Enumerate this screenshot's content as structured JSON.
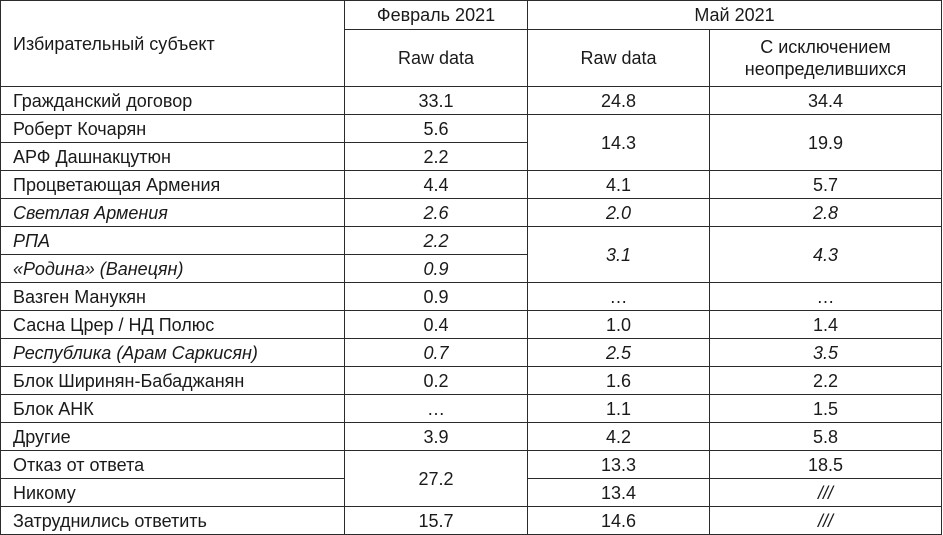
{
  "header": {
    "subject_label": "Избирательный субъект",
    "feb": "Февраль 2021",
    "may": "Май 2021",
    "raw1": "Raw data",
    "raw2": "Raw data",
    "excl_line1": "С исключением",
    "excl_line2": "неопределившихся"
  },
  "rows": [
    {
      "name": "Гражданский договор",
      "feb": "33.1",
      "may": "24.8",
      "excl": "34.4"
    },
    {
      "name": "Роберт Кочарян",
      "feb": "5.6",
      "may": "14.3",
      "excl": "19.9"
    },
    {
      "name": "АРФ Дашнакцутюн",
      "feb": "2.2"
    },
    {
      "name": "Процветающая Армения",
      "feb": "4.4",
      "may": "4.1",
      "excl": "5.7"
    },
    {
      "name": "Светлая Армения",
      "feb": "2.6",
      "may": "2.0",
      "excl": "2.8"
    },
    {
      "name": "РПА",
      "feb": "2.2",
      "may": "3.1",
      "excl": "4.3"
    },
    {
      "name": "«Родина» (Ванецян)",
      "feb": "0.9"
    },
    {
      "name": "Вазген Манукян",
      "feb": "0.9",
      "may": "…",
      "excl": "…"
    },
    {
      "name": "Сасна Црер / НД Полюс",
      "feb": "0.4",
      "may": "1.0",
      "excl": "1.4"
    },
    {
      "name": "Республика (Арам Саркисян)",
      "feb": "0.7",
      "may": "2.5",
      "excl": "3.5"
    },
    {
      "name": "Блок Ширинян-Бабаджанян",
      "feb": "0.2",
      "may": "1.6",
      "excl": "2.2"
    },
    {
      "name": "Блок АНК",
      "feb": "…",
      "may": "1.1",
      "excl": "1.5"
    },
    {
      "name": "Другие",
      "feb": "3.9",
      "may": "4.2",
      "excl": "5.8"
    },
    {
      "name": "Отказ от ответа",
      "feb": "27.2",
      "may": "13.3",
      "excl": "18.5"
    },
    {
      "name": "Никому",
      "may": "13.4",
      "excl": "///"
    },
    {
      "name": "Затруднились ответить",
      "feb": "15.7",
      "may": "14.6",
      "excl": "///"
    }
  ]
}
